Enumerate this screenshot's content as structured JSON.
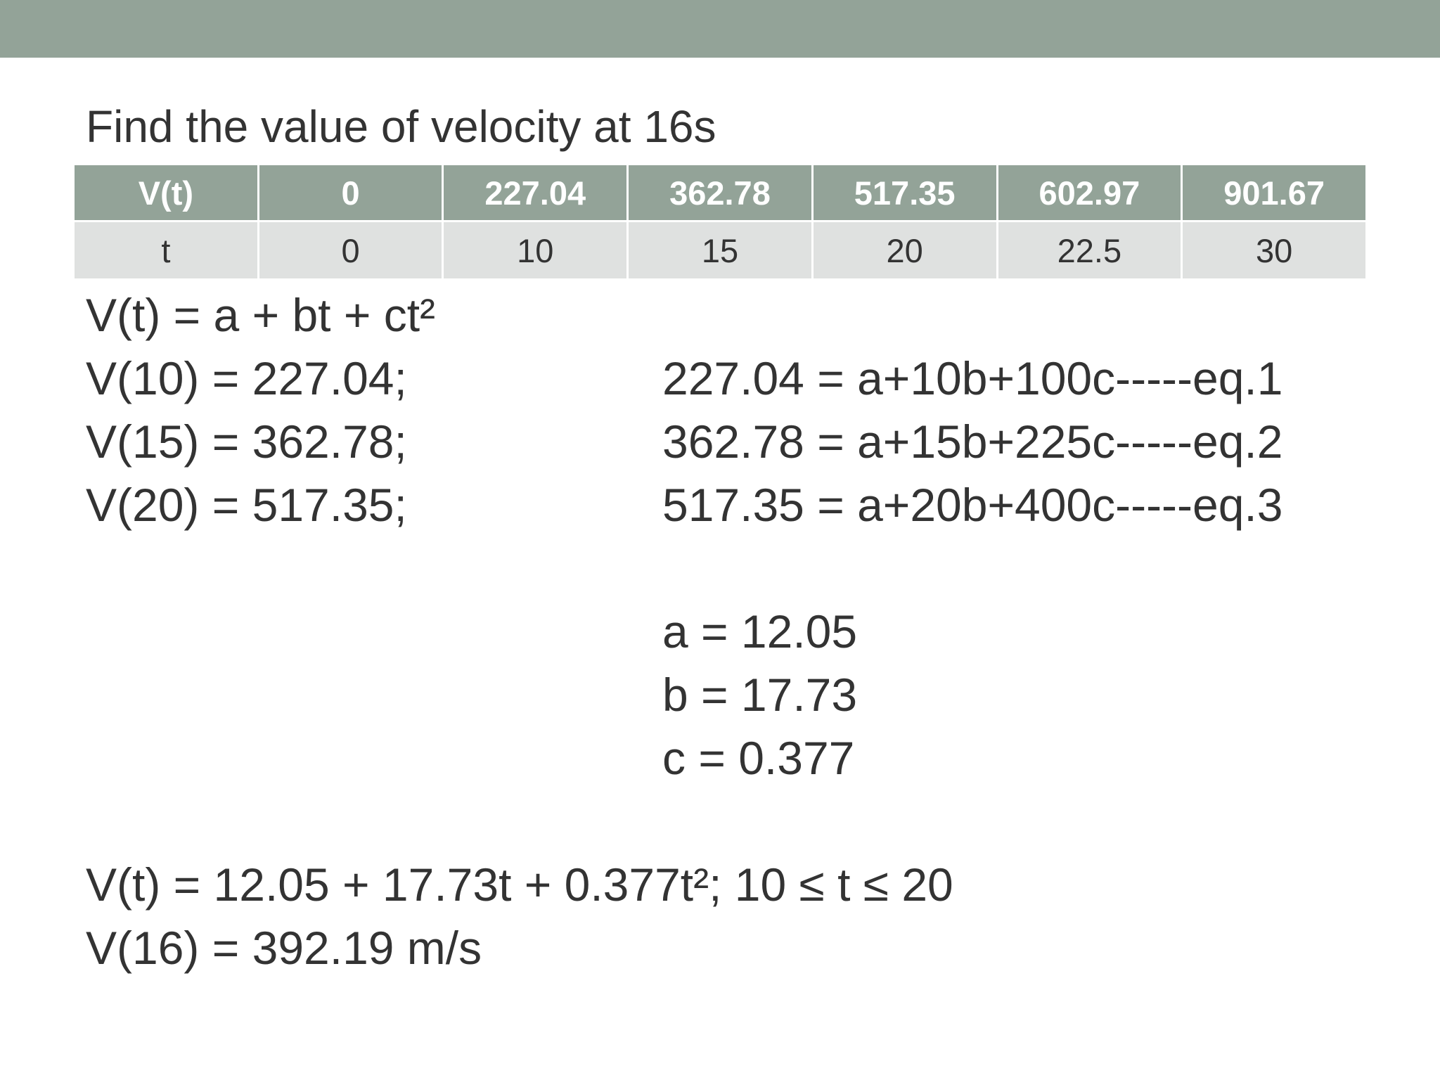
{
  "colors": {
    "top_bar": "#93a398",
    "table_header_bg": "#93a398",
    "table_body_bg": "#dfe1e0",
    "text": "#333333"
  },
  "heading": "Find the value of velocity at 16s",
  "table": {
    "rows": [
      [
        "V(t)",
        "0",
        "227.04",
        "362.78",
        "517.35",
        "602.97",
        "901.67"
      ],
      [
        "t",
        "0",
        "10",
        "15",
        "20",
        "22.5",
        "30"
      ]
    ]
  },
  "left_equations": [
    "V(t) = a + bt + ct²",
    "V(10) = 227.04;",
    "V(15) = 362.78;",
    "V(20) = 517.35;"
  ],
  "right_equations": [
    "227.04 = a+10b+100c-----eq.1",
    "362.78 = a+15b+225c-----eq.2",
    "517.35 = a+20b+400c-----eq.3"
  ],
  "coefficients": [
    "a = 12.05",
    "b = 17.73",
    "c = 0.377"
  ],
  "result": [
    "V(t) = 12.05 + 17.73t + 0.377t²; 10 ≤ t ≤ 20",
    "V(16) = 392.19 m/s"
  ]
}
